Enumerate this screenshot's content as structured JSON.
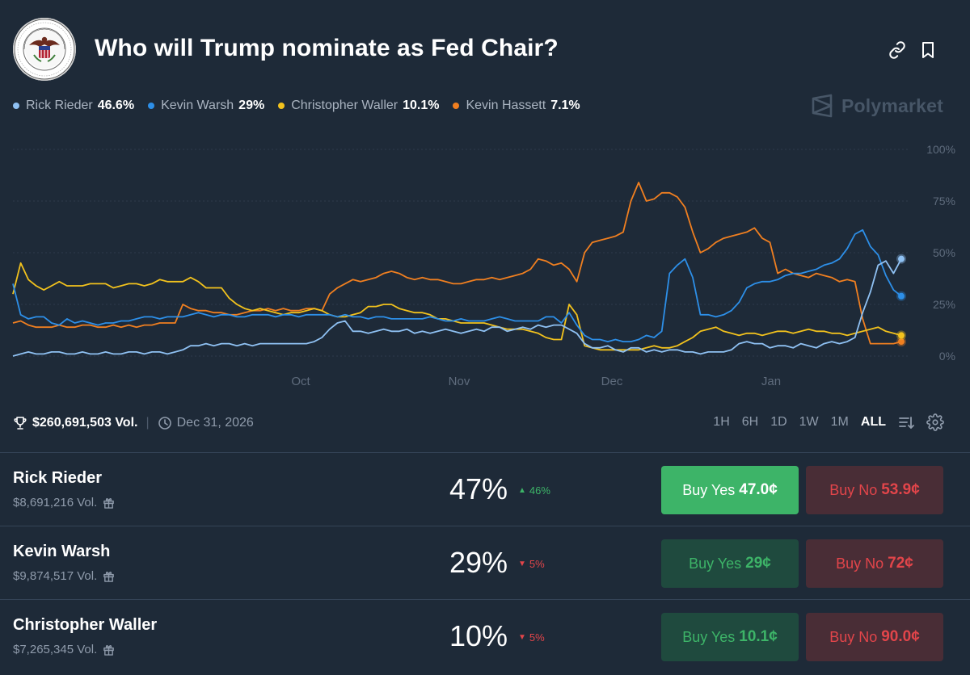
{
  "header": {
    "title": "Who will Trump nominate as Fed Chair?",
    "logo_text": "BOARD OF GOVERNORS OF THE FEDERAL RESERVE SYSTEM",
    "icons": [
      "link-icon",
      "bookmark-icon"
    ]
  },
  "legend": [
    {
      "name": "Rick Rieder",
      "pct": "46.6%",
      "color": "#8fc1f3"
    },
    {
      "name": "Kevin Warsh",
      "pct": "29%",
      "color": "#2d8fe8"
    },
    {
      "name": "Christopher Waller",
      "pct": "10.1%",
      "color": "#f2c21d"
    },
    {
      "name": "Kevin Hassett",
      "pct": "7.1%",
      "color": "#f07f20"
    }
  ],
  "brand": {
    "name": "Polymarket"
  },
  "stats": {
    "volume": "$260,691,503 Vol.",
    "end_date": "Dec 31, 2026"
  },
  "ranges": {
    "options": [
      "1H",
      "6H",
      "1D",
      "1W",
      "1M",
      "ALL"
    ],
    "active": "ALL"
  },
  "outcomes": [
    {
      "name": "Rick Rieder",
      "volume": "$8,691,216 Vol.",
      "probability": "47%",
      "change": "46%",
      "direction": "up",
      "yes_label": "Buy Yes",
      "yes_price": "47.0¢",
      "no_label": "Buy No",
      "no_price": "53.9¢",
      "active_yes": true
    },
    {
      "name": "Kevin Warsh",
      "volume": "$9,874,517 Vol.",
      "probability": "29%",
      "change": "5%",
      "direction": "down",
      "yes_label": "Buy Yes",
      "yes_price": "29¢",
      "no_label": "Buy No",
      "no_price": "72¢",
      "active_yes": false
    },
    {
      "name": "Christopher Waller",
      "volume": "$7,265,345 Vol.",
      "probability": "10%",
      "change": "5%",
      "direction": "down",
      "yes_label": "Buy Yes",
      "yes_price": "10.1¢",
      "no_label": "Buy No",
      "no_price": "90.0¢",
      "active_yes": false
    }
  ],
  "chart_data": {
    "type": "line",
    "x_ticks": [
      "Oct",
      "Nov",
      "Dec",
      "Jan"
    ],
    "y_ticks": [
      "0%",
      "25%",
      "50%",
      "75%",
      "100%"
    ],
    "ylim": [
      0,
      100
    ],
    "grid": true,
    "legend_position": "top-left",
    "series": [
      {
        "name": "Rick Rieder",
        "color": "#8fc1f3",
        "values": [
          0,
          1,
          2,
          1,
          1,
          2,
          2,
          1,
          1,
          2,
          1,
          1,
          2,
          1,
          1,
          2,
          2,
          1,
          2,
          2,
          1,
          2,
          3,
          5,
          5,
          6,
          5,
          6,
          6,
          5,
          6,
          5,
          6,
          6,
          6,
          6,
          6,
          6,
          6,
          7,
          9,
          13,
          16,
          17,
          12,
          12,
          11,
          12,
          13,
          12,
          12,
          13,
          11,
          12,
          11,
          12,
          13,
          12,
          11,
          12,
          13,
          12,
          14,
          14,
          12,
          13,
          14,
          13,
          15,
          14,
          15,
          15,
          13,
          11,
          6,
          4,
          4,
          5,
          3,
          2,
          4,
          4,
          2,
          3,
          2,
          3,
          3,
          2,
          2,
          1,
          2,
          2,
          2,
          3,
          6,
          7,
          6,
          6,
          4,
          5,
          5,
          4,
          6,
          5,
          4,
          6,
          7,
          6,
          7,
          9,
          21,
          31,
          44,
          46,
          40,
          47
        ]
      },
      {
        "name": "Kevin Warsh",
        "color": "#2d8fe8",
        "values": [
          35,
          20,
          18,
          19,
          19,
          16,
          15,
          18,
          16,
          17,
          16,
          15,
          16,
          16,
          17,
          17,
          18,
          19,
          19,
          18,
          19,
          19,
          19,
          20,
          21,
          20,
          19,
          20,
          20,
          19,
          19,
          20,
          20,
          20,
          19,
          20,
          20,
          19,
          20,
          20,
          20,
          20,
          19,
          20,
          19,
          19,
          18,
          19,
          19,
          18,
          18,
          18,
          18,
          18,
          19,
          18,
          17,
          17,
          18,
          17,
          17,
          17,
          18,
          19,
          18,
          17,
          17,
          17,
          17,
          19,
          19,
          16,
          21,
          15,
          10,
          8,
          8,
          7,
          8,
          7,
          7,
          8,
          10,
          9,
          12,
          40,
          44,
          47,
          38,
          20,
          20,
          19,
          20,
          22,
          26,
          33,
          35,
          36,
          36,
          37,
          39,
          40,
          40,
          41,
          42,
          44,
          45,
          47,
          52,
          59,
          61,
          53,
          49,
          39,
          32,
          29
        ]
      },
      {
        "name": "Christopher Waller",
        "color": "#f2c21d",
        "values": [
          30,
          45,
          37,
          34,
          32,
          34,
          36,
          34,
          34,
          34,
          35,
          35,
          35,
          33,
          34,
          35,
          35,
          34,
          35,
          37,
          36,
          36,
          36,
          38,
          36,
          33,
          33,
          33,
          28,
          25,
          23,
          22,
          23,
          22,
          21,
          20,
          21,
          21,
          22,
          23,
          22,
          20,
          19,
          19,
          20,
          21,
          24,
          24,
          25,
          25,
          23,
          22,
          21,
          21,
          20,
          18,
          18,
          17,
          16,
          16,
          16,
          16,
          15,
          14,
          13,
          13,
          13,
          12,
          11,
          9,
          8,
          8,
          25,
          20,
          5,
          4,
          3,
          3,
          3,
          3,
          3,
          3,
          4,
          5,
          4,
          4,
          5,
          7,
          9,
          12,
          13,
          14,
          12,
          11,
          10,
          11,
          11,
          10,
          11,
          12,
          12,
          11,
          12,
          13,
          12,
          12,
          11,
          11,
          10,
          11,
          12,
          13,
          14,
          12,
          11,
          10
        ]
      },
      {
        "name": "Kevin Hassett",
        "color": "#f07f20",
        "values": [
          16,
          17,
          15,
          14,
          14,
          14,
          15,
          14,
          14,
          15,
          15,
          14,
          14,
          15,
          14,
          15,
          14,
          15,
          15,
          16,
          16,
          16,
          25,
          23,
          22,
          22,
          21,
          21,
          20,
          20,
          21,
          22,
          22,
          23,
          22,
          23,
          22,
          22,
          23,
          23,
          22,
          30,
          33,
          35,
          37,
          36,
          37,
          38,
          40,
          41,
          40,
          38,
          37,
          38,
          37,
          37,
          36,
          35,
          35,
          36,
          37,
          37,
          38,
          37,
          38,
          39,
          40,
          42,
          47,
          46,
          44,
          45,
          42,
          36,
          50,
          55,
          56,
          57,
          58,
          60,
          75,
          84,
          75,
          76,
          79,
          79,
          77,
          72,
          60,
          50,
          52,
          55,
          57,
          58,
          59,
          60,
          62,
          57,
          55,
          40,
          42,
          40,
          39,
          38,
          40,
          39,
          38,
          36,
          37,
          36,
          18,
          6,
          6,
          6,
          6,
          7
        ]
      }
    ]
  }
}
